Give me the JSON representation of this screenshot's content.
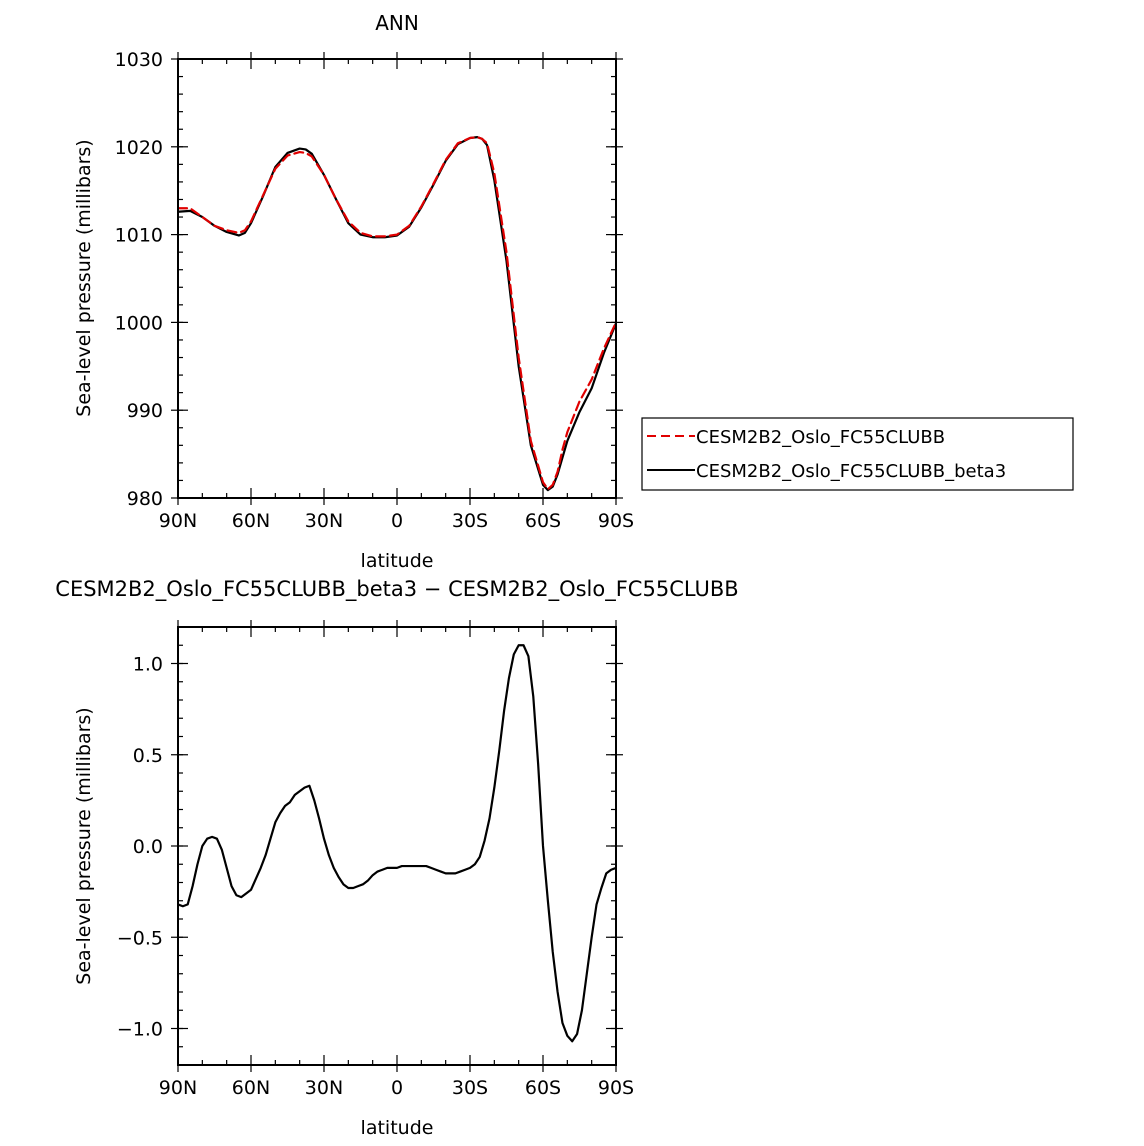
{
  "chart_data": [
    {
      "type": "line",
      "title": "ANN",
      "xlabel": "latitude",
      "ylabel": "Sea-level pressure (millibars)",
      "x_ticks": [
        "90N",
        "60N",
        "30N",
        "0",
        "30S",
        "60S",
        "90S"
      ],
      "xlim": [
        90,
        -90
      ],
      "ylim": [
        980,
        1030
      ],
      "y_ticks": [
        980,
        990,
        1000,
        1010,
        1020,
        1030
      ],
      "y_tick_labels": [
        "980",
        "990",
        "1000",
        "1010",
        "1020",
        "1030"
      ],
      "legend": "right",
      "series": [
        {
          "name": "CESM2B2_Oslo_FC55CLUBB",
          "color": "#e00000",
          "dash": "dashed",
          "x": [
            90,
            85,
            80,
            75,
            70,
            65,
            62.5,
            60,
            55,
            50,
            45,
            40,
            37.5,
            35,
            30,
            25,
            20,
            15,
            10,
            5,
            0,
            -5,
            -10,
            -15,
            -20,
            -25,
            -30,
            -33,
            -35,
            -37,
            -40,
            -45,
            -50,
            -55,
            -60,
            -62,
            -64,
            -66,
            -68,
            -70,
            -75,
            -80,
            -85,
            -90
          ],
          "y": [
            1013.0,
            1013.0,
            1012.0,
            1011.0,
            1010.5,
            1010.2,
            1010.5,
            1011.5,
            1014.5,
            1017.5,
            1019.0,
            1019.4,
            1019.3,
            1018.9,
            1016.8,
            1014.0,
            1011.5,
            1010.2,
            1009.8,
            1009.8,
            1010.0,
            1011.0,
            1013.2,
            1015.8,
            1018.5,
            1020.4,
            1021.0,
            1021.1,
            1020.9,
            1020.4,
            1017.0,
            1008.0,
            996.0,
            986.5,
            981.8,
            981.0,
            981.5,
            983.0,
            985.5,
            987.5,
            991.0,
            993.5,
            997.0,
            1000.0
          ]
        },
        {
          "name": "CESM2B2_Oslo_FC55CLUBB_beta3",
          "color": "#000000",
          "dash": "solid",
          "x": [
            90,
            85,
            80,
            75,
            70,
            65,
            62.5,
            60,
            55,
            50,
            45,
            40,
            37.5,
            35,
            30,
            25,
            20,
            15,
            10,
            5,
            0,
            -5,
            -10,
            -15,
            -20,
            -25,
            -30,
            -33,
            -35,
            -37,
            -40,
            -45,
            -50,
            -55,
            -60,
            -62,
            -64,
            -66,
            -68,
            -70,
            -75,
            -80,
            -85,
            -90
          ],
          "y": [
            1012.6,
            1012.7,
            1012.0,
            1011.0,
            1010.3,
            1009.9,
            1010.2,
            1011.3,
            1014.4,
            1017.7,
            1019.3,
            1019.8,
            1019.7,
            1019.2,
            1016.8,
            1014.0,
            1011.3,
            1010.0,
            1009.7,
            1009.7,
            1009.9,
            1010.9,
            1013.1,
            1015.7,
            1018.4,
            1020.3,
            1021.0,
            1021.1,
            1020.9,
            1020.2,
            1016.2,
            1007.0,
            995.0,
            986.0,
            981.5,
            980.9,
            981.3,
            982.7,
            984.6,
            986.5,
            989.8,
            992.5,
            996.5,
            999.9
          ]
        }
      ]
    },
    {
      "type": "line",
      "title": "CESM2B2_Oslo_FC55CLUBB_beta3 − CESM2B2_Oslo_FC55CLUBB",
      "xlabel": "latitude",
      "ylabel": "Sea-level pressure (millibars)",
      "x_ticks": [
        "90N",
        "60N",
        "30N",
        "0",
        "30S",
        "60S",
        "90S"
      ],
      "xlim": [
        90,
        -90
      ],
      "ylim": [
        -1.2,
        1.2
      ],
      "y_ticks": [
        -1.0,
        -0.5,
        0.0,
        0.5,
        1.0
      ],
      "y_tick_labels": [
        "−1.0",
        "−0.5",
        "0.0",
        "0.5",
        "1.0"
      ],
      "series": [
        {
          "color": "#000000",
          "dash": "solid",
          "x": [
            90,
            88,
            86,
            84,
            82,
            80,
            78,
            76,
            74,
            72,
            70,
            68,
            66,
            64,
            62,
            60,
            58,
            56,
            54,
            52,
            50,
            48,
            46,
            44,
            42,
            40,
            38,
            36,
            34,
            32,
            30,
            28,
            26,
            24,
            22,
            20,
            18,
            16,
            14,
            12,
            10,
            8,
            6,
            4,
            2,
            0,
            -2,
            -4,
            -6,
            -8,
            -10,
            -12,
            -14,
            -16,
            -18,
            -20,
            -22,
            -24,
            -26,
            -28,
            -30,
            -32,
            -34,
            -36,
            -38,
            -40,
            -42,
            -44,
            -46,
            -48,
            -50,
            -52,
            -54,
            -56,
            -58,
            -60,
            -62,
            -64,
            -66,
            -68,
            -70,
            -72,
            -74,
            -76,
            -78,
            -80,
            -82,
            -84,
            -86,
            -88,
            -90
          ],
          "y": [
            -0.32,
            -0.33,
            -0.32,
            -0.22,
            -0.1,
            0.0,
            0.04,
            0.05,
            0.04,
            -0.02,
            -0.12,
            -0.22,
            -0.27,
            -0.28,
            -0.26,
            -0.24,
            -0.18,
            -0.12,
            -0.05,
            0.04,
            0.13,
            0.18,
            0.22,
            0.24,
            0.28,
            0.3,
            0.32,
            0.33,
            0.25,
            0.15,
            0.04,
            -0.05,
            -0.12,
            -0.17,
            -0.21,
            -0.23,
            -0.23,
            -0.22,
            -0.21,
            -0.19,
            -0.16,
            -0.14,
            -0.13,
            -0.12,
            -0.12,
            -0.12,
            -0.11,
            -0.11,
            -0.11,
            -0.11,
            -0.11,
            -0.11,
            -0.12,
            -0.13,
            -0.14,
            -0.15,
            -0.15,
            -0.15,
            -0.14,
            -0.13,
            -0.12,
            -0.1,
            -0.06,
            0.03,
            0.15,
            0.32,
            0.52,
            0.74,
            0.92,
            1.05,
            1.1,
            1.1,
            1.04,
            0.82,
            0.45,
            0.0,
            -0.3,
            -0.58,
            -0.8,
            -0.97,
            -1.04,
            -1.07,
            -1.03,
            -0.9,
            -0.7,
            -0.5,
            -0.32,
            -0.23,
            -0.15,
            -0.13,
            -0.12
          ]
        }
      ]
    }
  ]
}
